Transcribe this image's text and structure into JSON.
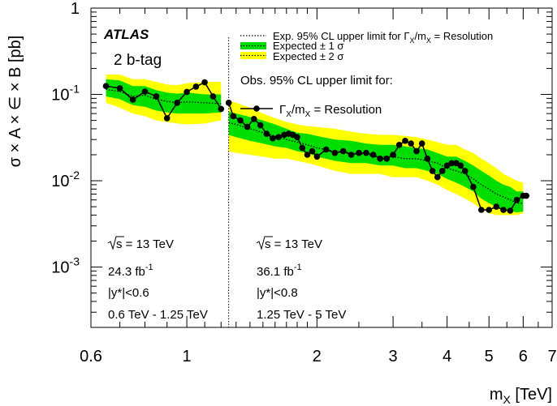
{
  "chart_data": {
    "type": "line",
    "xlabel": "m_X [TeV]",
    "ylabel": "σ × A × ∈ × B [pb]",
    "xscale": "log",
    "yscale": "log",
    "xlim": [
      0.6,
      7
    ],
    "ylim": [
      0.0002,
      1
    ],
    "x_ticks": [
      {
        "value": 0.6,
        "label": "0.6"
      },
      {
        "value": 1,
        "label": "1"
      },
      {
        "value": 2,
        "label": "2"
      },
      {
        "value": 3,
        "label": "3"
      },
      {
        "value": 4,
        "label": "4"
      },
      {
        "value": 5,
        "label": "5"
      },
      {
        "value": 6,
        "label": "6"
      },
      {
        "value": 7,
        "label": "7"
      }
    ],
    "y_ticks": [
      {
        "value": 0.001,
        "base": "10",
        "exp": "-3"
      },
      {
        "value": 0.01,
        "base": "10",
        "exp": "-2"
      },
      {
        "value": 0.1,
        "base": "10",
        "exp": "-1"
      },
      {
        "value": 1,
        "base": "1",
        "exp": ""
      }
    ],
    "boundary_x": 1.25,
    "annotations": {
      "atlas": "ATLAS",
      "tag": "2 b-tag",
      "left_region": {
        "sqrt_s": "s = 13 TeV",
        "lumi_value": "24.3 fb",
        "lumi_exp": "-1",
        "rapidity": "|y*|<0.6",
        "mass_range": "0.6 TeV - 1.25 TeV"
      },
      "right_region": {
        "sqrt_s": "s = 13 TeV",
        "lumi_value": "36.1 fb",
        "lumi_exp": "-1",
        "rapidity": "|y*|<0.8",
        "mass_range": "1.25 TeV - 5 TeV"
      }
    },
    "legend": {
      "position": "top-right",
      "expected": "Exp. 95% CL upper limit for Γ_X/m_X = Resolution",
      "band1": "Expected ± 1 σ",
      "band2": "Expected ± 2 σ",
      "observed_header": "Obs. 95% CL upper limit for:",
      "observed": "Γ_X/m_X = Resolution"
    },
    "colors": {
      "band1": "#00dd00",
      "band2": "#ffff00",
      "expected": "#000000",
      "observed": "#000000"
    },
    "series": [
      {
        "name": "Γ_X/m_X = Resolution",
        "kind": "observed",
        "x": [
          0.65,
          0.7,
          0.75,
          0.8,
          0.85,
          0.9,
          0.95,
          1.0,
          1.05,
          1.1,
          1.15,
          1.2,
          1.25,
          1.28,
          1.33,
          1.38,
          1.43,
          1.48,
          1.53,
          1.58,
          1.63,
          1.68,
          1.72,
          1.76,
          1.8,
          1.85,
          1.9,
          1.95,
          2.0,
          2.1,
          2.2,
          2.3,
          2.4,
          2.5,
          2.6,
          2.7,
          2.8,
          2.9,
          3.0,
          3.1,
          3.2,
          3.3,
          3.4,
          3.5,
          3.6,
          3.7,
          3.8,
          3.9,
          4.0,
          4.1,
          4.2,
          4.3,
          4.4,
          4.6,
          4.8,
          5.0,
          5.2,
          5.4,
          5.6,
          5.8,
          6.0,
          6.1
        ],
        "y": [
          0.125,
          0.118,
          0.087,
          0.108,
          0.095,
          0.053,
          0.08,
          0.107,
          0.123,
          0.138,
          0.095,
          0.068,
          0.08,
          0.056,
          0.05,
          0.042,
          0.052,
          0.044,
          0.035,
          0.031,
          0.032,
          0.034,
          0.035,
          0.034,
          0.032,
          0.024,
          0.02,
          0.022,
          0.019,
          0.023,
          0.021,
          0.022,
          0.02,
          0.021,
          0.021,
          0.02,
          0.018,
          0.018,
          0.02,
          0.026,
          0.029,
          0.027,
          0.022,
          0.027,
          0.018,
          0.013,
          0.011,
          0.013,
          0.015,
          0.016,
          0.016,
          0.015,
          0.013,
          0.0085,
          0.0046,
          0.0046,
          0.005,
          0.0046,
          0.0045,
          0.006,
          0.0067,
          0.0067
        ]
      },
      {
        "name": "Exp. 95% CL upper limit for Γ_X/m_X = Resolution",
        "kind": "expected",
        "x": [
          0.65,
          0.7,
          0.75,
          0.8,
          0.85,
          0.9,
          0.95,
          1.0,
          1.1,
          1.2,
          1.25,
          1.3,
          1.4,
          1.5,
          1.6,
          1.7,
          1.8,
          1.9,
          2.0,
          2.2,
          2.4,
          2.6,
          2.8,
          3.0,
          3.2,
          3.4,
          3.6,
          3.8,
          4.0,
          4.2,
          4.4,
          4.6,
          4.8,
          5.0,
          5.2,
          5.4,
          5.6,
          5.8,
          6.0
        ],
        "y": [
          0.115,
          0.108,
          0.095,
          0.098,
          0.088,
          0.083,
          0.08,
          0.082,
          0.08,
          0.078,
          0.047,
          0.045,
          0.04,
          0.036,
          0.033,
          0.03,
          0.028,
          0.026,
          0.024,
          0.022,
          0.021,
          0.02,
          0.019,
          0.019,
          0.018,
          0.018,
          0.017,
          0.016,
          0.014,
          0.013,
          0.012,
          0.0105,
          0.009,
          0.008,
          0.007,
          0.0065,
          0.006,
          0.0055,
          0.0055
        ]
      }
    ],
    "bands": {
      "x": [
        0.65,
        0.7,
        0.75,
        0.8,
        0.85,
        0.9,
        0.95,
        1.0,
        1.1,
        1.2,
        1.25,
        1.3,
        1.4,
        1.5,
        1.6,
        1.7,
        1.8,
        1.9,
        2.0,
        2.2,
        2.4,
        2.6,
        2.8,
        3.0,
        3.2,
        3.4,
        3.6,
        3.8,
        4.0,
        4.2,
        4.4,
        4.6,
        4.8,
        5.0,
        5.2,
        5.4,
        5.6,
        5.8,
        6.0
      ],
      "sigma1_low": [
        0.095,
        0.088,
        0.075,
        0.072,
        0.065,
        0.062,
        0.06,
        0.06,
        0.06,
        0.062,
        0.034,
        0.032,
        0.029,
        0.027,
        0.025,
        0.024,
        0.022,
        0.021,
        0.019,
        0.017,
        0.016,
        0.016,
        0.015,
        0.015,
        0.014,
        0.014,
        0.013,
        0.012,
        0.0105,
        0.0095,
        0.0085,
        0.0075,
        0.0062,
        0.0055,
        0.005,
        0.0047,
        0.0045,
        0.0043,
        0.0044
      ],
      "sigma1_high": [
        0.15,
        0.145,
        0.125,
        0.125,
        0.112,
        0.105,
        0.102,
        0.105,
        0.1,
        0.1,
        0.063,
        0.06,
        0.055,
        0.05,
        0.045,
        0.04,
        0.036,
        0.035,
        0.033,
        0.03,
        0.029,
        0.027,
        0.026,
        0.026,
        0.025,
        0.024,
        0.023,
        0.021,
        0.019,
        0.019,
        0.017,
        0.015,
        0.013,
        0.0115,
        0.01,
        0.009,
        0.0085,
        0.0075,
        0.0075
      ],
      "sigma2_low": [
        0.08,
        0.07,
        0.06,
        0.056,
        0.05,
        0.048,
        0.046,
        0.045,
        0.046,
        0.05,
        0.022,
        0.021,
        0.02,
        0.019,
        0.018,
        0.018,
        0.017,
        0.016,
        0.015,
        0.013,
        0.012,
        0.012,
        0.012,
        0.011,
        0.011,
        0.011,
        0.01,
        0.009,
        0.0078,
        0.007,
        0.0062,
        0.0055,
        0.0047,
        0.0042,
        0.004,
        0.004,
        0.004,
        0.004,
        0.0042
      ],
      "sigma2_high": [
        0.17,
        0.17,
        0.15,
        0.15,
        0.14,
        0.13,
        0.128,
        0.135,
        0.14,
        0.14,
        0.085,
        0.08,
        0.07,
        0.06,
        0.053,
        0.048,
        0.045,
        0.043,
        0.042,
        0.04,
        0.037,
        0.035,
        0.034,
        0.034,
        0.033,
        0.032,
        0.03,
        0.028,
        0.026,
        0.026,
        0.023,
        0.021,
        0.018,
        0.016,
        0.014,
        0.012,
        0.011,
        0.01,
        0.0095
      ]
    }
  }
}
